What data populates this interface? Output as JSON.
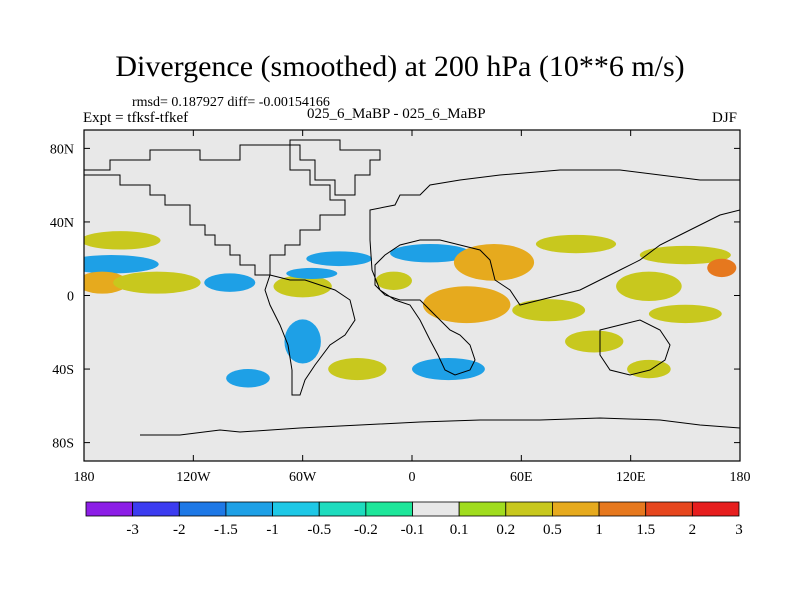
{
  "chart_data": {
    "type": "contour-map",
    "title": "Divergence (smoothed) at 200 hPa (10**6 m/s)",
    "stats_line": "rmsd= 0.187927 diff= -0.00154166",
    "expt_line": "Expt = tfksf-tfkef",
    "cases_line": "025_6_MaBP - 025_6_MaBP",
    "season": "DJF",
    "x_axis": {
      "range": [
        -180,
        180
      ],
      "ticks": [
        {
          "value": -180,
          "label": "180"
        },
        {
          "value": -120,
          "label": "120W"
        },
        {
          "value": -60,
          "label": "60W"
        },
        {
          "value": 0,
          "label": "0"
        },
        {
          "value": 60,
          "label": "60E"
        },
        {
          "value": 120,
          "label": "120E"
        },
        {
          "value": 180,
          "label": "180"
        }
      ]
    },
    "y_axis": {
      "range": [
        -90,
        90
      ],
      "ticks": [
        {
          "value": 80,
          "label": "80N"
        },
        {
          "value": 40,
          "label": "40N"
        },
        {
          "value": 0,
          "label": "0"
        },
        {
          "value": -40,
          "label": "40S"
        },
        {
          "value": -80,
          "label": "80S"
        }
      ]
    },
    "colorbar": {
      "labels": [
        "-3",
        "-2",
        "-1.5",
        "-1",
        "-0.5",
        "-0.2",
        "-0.1",
        "0.1",
        "0.2",
        "0.5",
        "1",
        "1.5",
        "2",
        "3"
      ],
      "colors": [
        "#8c1ee6",
        "#3c3cf0",
        "#1e78e6",
        "#1ea0e6",
        "#1ec8e6",
        "#1edcbe",
        "#1ee69a",
        "#e8e8e8",
        "#a0dc1e",
        "#c8c81e",
        "#e6aa1e",
        "#e6781e",
        "#e6461e",
        "#e61e1e"
      ]
    },
    "anomaly_features": [
      {
        "lon": -160,
        "lat": 30,
        "w": 22,
        "h": 5,
        "level": 9
      },
      {
        "lon": -165,
        "lat": 17,
        "w": 26,
        "h": 5,
        "level": 3
      },
      {
        "lon": -170,
        "lat": 7,
        "w": 14,
        "h": 6,
        "level": 10
      },
      {
        "lon": -140,
        "lat": 7,
        "w": 24,
        "h": 6,
        "level": 9
      },
      {
        "lon": -100,
        "lat": 7,
        "w": 14,
        "h": 5,
        "level": 3
      },
      {
        "lon": -60,
        "lat": 5,
        "w": 16,
        "h": 6,
        "level": 9
      },
      {
        "lon": -40,
        "lat": 20,
        "w": 18,
        "h": 4,
        "level": 3
      },
      {
        "lon": -55,
        "lat": 12,
        "w": 14,
        "h": 3,
        "level": 3
      },
      {
        "lon": -10,
        "lat": 8,
        "w": 10,
        "h": 5,
        "level": 9
      },
      {
        "lon": 10,
        "lat": 23,
        "w": 22,
        "h": 5,
        "level": 3
      },
      {
        "lon": 45,
        "lat": 18,
        "w": 22,
        "h": 10,
        "level": 10
      },
      {
        "lon": 30,
        "lat": -5,
        "w": 24,
        "h": 10,
        "level": 10
      },
      {
        "lon": 90,
        "lat": 28,
        "w": 22,
        "h": 5,
        "level": 9
      },
      {
        "lon": 150,
        "lat": 22,
        "w": 25,
        "h": 5,
        "level": 9
      },
      {
        "lon": 170,
        "lat": 15,
        "w": 8,
        "h": 5,
        "level": 11
      },
      {
        "lon": 130,
        "lat": 5,
        "w": 18,
        "h": 8,
        "level": 9
      },
      {
        "lon": 75,
        "lat": -8,
        "w": 20,
        "h": 6,
        "level": 9
      },
      {
        "lon": 150,
        "lat": -10,
        "w": 20,
        "h": 5,
        "level": 9
      },
      {
        "lon": 20,
        "lat": -40,
        "w": 20,
        "h": 6,
        "level": 3
      },
      {
        "lon": -60,
        "lat": -25,
        "w": 10,
        "h": 12,
        "level": 3
      },
      {
        "lon": -90,
        "lat": -45,
        "w": 12,
        "h": 5,
        "level": 3
      },
      {
        "lon": -30,
        "lat": -40,
        "w": 16,
        "h": 6,
        "level": 9
      },
      {
        "lon": 100,
        "lat": -25,
        "w": 16,
        "h": 6,
        "level": 9
      },
      {
        "lon": 130,
        "lat": -40,
        "w": 12,
        "h": 5,
        "level": 9
      }
    ]
  }
}
